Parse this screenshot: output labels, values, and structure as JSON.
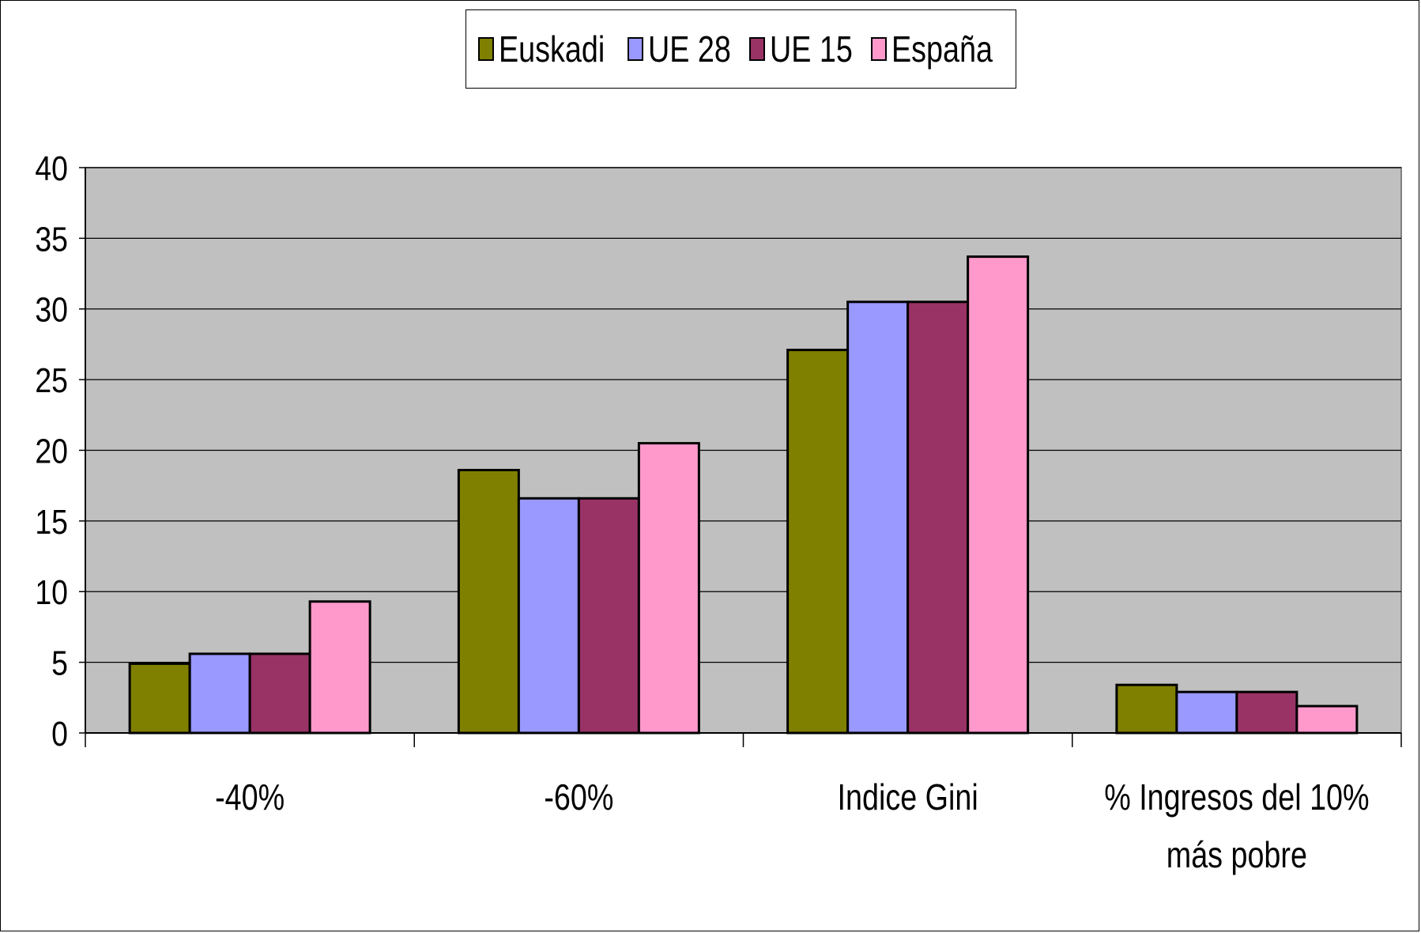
{
  "chart_data": {
    "type": "bar",
    "categories": [
      "-40%",
      "-60%",
      "Indice Gini",
      "% Ingresos del 10% más pobre"
    ],
    "category_lines": [
      [
        "-40%"
      ],
      [
        "-60%"
      ],
      [
        "Indice Gini"
      ],
      [
        "% Ingresos del 10%",
        "más pobre"
      ]
    ],
    "series": [
      {
        "name": "Euskadi",
        "color": "#808000",
        "values": [
          4.9,
          18.6,
          27.1,
          3.4
        ]
      },
      {
        "name": "UE 28",
        "color": "#9999FF",
        "values": [
          5.6,
          16.6,
          30.5,
          2.9
        ]
      },
      {
        "name": "UE 15",
        "color": "#993366",
        "values": [
          5.6,
          16.6,
          30.5,
          2.9
        ]
      },
      {
        "name": "España",
        "color": "#FF99CC",
        "values": [
          9.3,
          20.5,
          33.7,
          1.9
        ]
      }
    ],
    "ylim": [
      0,
      40
    ],
    "yticks": [
      0,
      5,
      10,
      15,
      20,
      25,
      30,
      35,
      40
    ],
    "grid": true,
    "legend_position": "top",
    "plot_background": "#C0C0C0"
  }
}
